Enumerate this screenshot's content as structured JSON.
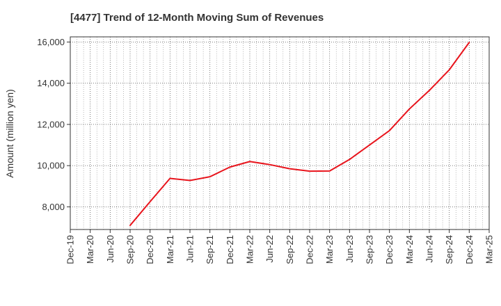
{
  "chart_data": {
    "type": "line",
    "title": "[4477]  Trend of 12-Month Moving Sum of Revenues",
    "xlabel": "",
    "ylabel": "Amount (million yen)",
    "ylim": [
      6900,
      16250
    ],
    "yticks": [
      8000,
      10000,
      12000,
      14000,
      16000
    ],
    "ytick_labels": [
      "8,000",
      "10,000",
      "12,000",
      "14,000",
      "16,000"
    ],
    "x_tick_labels": [
      "Dec-19",
      "Mar-20",
      "Jun-20",
      "Sep-20",
      "Dec-20",
      "Mar-21",
      "Jun-21",
      "Sep-21",
      "Dec-21",
      "Mar-22",
      "Jun-22",
      "Sep-22",
      "Dec-22",
      "Mar-23",
      "Jun-23",
      "Sep-23",
      "Dec-23",
      "Mar-24",
      "Jun-24",
      "Sep-24",
      "Dec-24",
      "Mar-25"
    ],
    "grid": true,
    "series": [
      {
        "color": "#e8141c",
        "x": [
          "Sep-20",
          "Dec-20",
          "Mar-21",
          "Jun-21",
          "Sep-21",
          "Dec-21",
          "Mar-22",
          "Jun-22",
          "Sep-22",
          "Dec-22",
          "Mar-23",
          "Jun-23",
          "Sep-23",
          "Dec-23",
          "Mar-24",
          "Jun-24",
          "Sep-24",
          "Dec-24"
        ],
        "values": [
          7100,
          8250,
          9380,
          9280,
          9460,
          9930,
          10200,
          10050,
          9850,
          9730,
          9740,
          10300,
          11000,
          11700,
          12750,
          13650,
          14650,
          15980
        ]
      }
    ]
  }
}
